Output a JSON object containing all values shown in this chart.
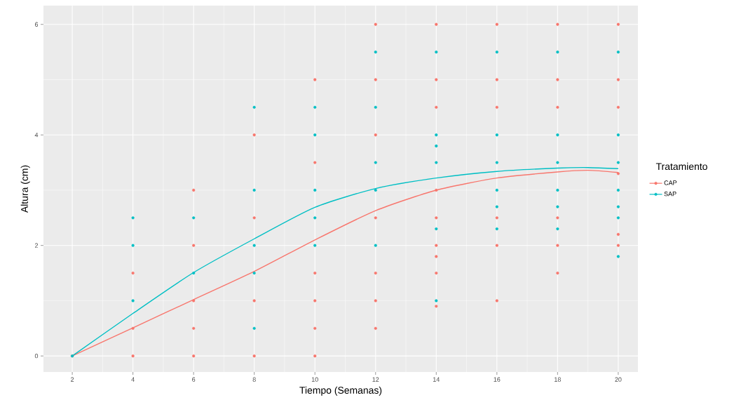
{
  "chart_data": {
    "type": "scatter",
    "xlabel": "Tiempo (Semanas)",
    "ylabel": "Altura (cm)",
    "legend_title": "Tratamiento",
    "legend": "right",
    "grid": true,
    "xlim": [
      1.05,
      20.65
    ],
    "ylim": [
      -0.29,
      6.34
    ],
    "xticks": [
      2,
      4,
      6,
      8,
      10,
      12,
      14,
      16,
      18,
      20
    ],
    "yticks": [
      0,
      2,
      4,
      6
    ],
    "series": [
      {
        "name": "CAP",
        "marker": "circle",
        "color": "#f8766d",
        "x": [
          2,
          4,
          4,
          4,
          6,
          6,
          6,
          6,
          6,
          8,
          8,
          8,
          8,
          10,
          10,
          10,
          10,
          10,
          10,
          12,
          12,
          12,
          12,
          12,
          12,
          12,
          14,
          14,
          14,
          14,
          14,
          14,
          14,
          14,
          14,
          16,
          16,
          16,
          16,
          16,
          16,
          18,
          18,
          18,
          18,
          18,
          18,
          20,
          20,
          20,
          20,
          20,
          20
        ],
        "values": [
          0,
          0,
          0.5,
          1.5,
          0,
          0.5,
          1,
          2,
          3,
          0,
          1,
          2.5,
          4,
          0,
          0.5,
          1,
          1.5,
          3.5,
          5,
          0.5,
          1,
          1.5,
          2.5,
          4,
          5,
          6,
          0.9,
          1.5,
          1.8,
          2,
          2.5,
          3,
          4.5,
          5,
          6,
          1,
          2,
          2.5,
          4.5,
          5,
          6,
          1.5,
          2,
          2.5,
          4.5,
          5,
          6,
          2,
          2.2,
          3.3,
          4.5,
          5,
          6
        ]
      },
      {
        "name": "SAP",
        "marker": "circle",
        "color": "#00bfc4",
        "x": [
          2,
          4,
          4,
          4,
          6,
          6,
          8,
          8,
          8,
          8,
          8,
          10,
          10,
          10,
          10,
          10,
          12,
          12,
          12,
          12,
          12,
          14,
          14,
          14,
          14,
          14,
          14,
          16,
          16,
          16,
          16,
          16,
          16,
          18,
          18,
          18,
          18,
          18,
          18,
          20,
          20,
          20,
          20,
          20,
          20,
          20
        ],
        "values": [
          0,
          1,
          2,
          2.5,
          1.5,
          2.5,
          0.5,
          1.5,
          2,
          3,
          4.5,
          2,
          2.5,
          3,
          4,
          4.5,
          2,
          3,
          3.5,
          4.5,
          5.5,
          1,
          2.3,
          3.5,
          3.8,
          4,
          5.5,
          2.3,
          2.7,
          3,
          3.5,
          4,
          5.5,
          2.3,
          2.7,
          3,
          3.5,
          4,
          5.5,
          1.8,
          2.5,
          2.7,
          3,
          3.5,
          4,
          5.5
        ]
      },
      {
        "type": "line",
        "marker": "none",
        "color": "#f8766d",
        "x": [
          2,
          4,
          6,
          8,
          10,
          12,
          14,
          16,
          18,
          19,
          20
        ],
        "values": [
          0,
          0.51,
          1.02,
          1.53,
          2.1,
          2.63,
          3,
          3.22,
          3.33,
          3.36,
          3.32
        ]
      },
      {
        "type": "line",
        "marker": "none",
        "color": "#00bfc4",
        "x": [
          2,
          4,
          6,
          8,
          10,
          12,
          14,
          16,
          18,
          19,
          20
        ],
        "values": [
          0,
          0.77,
          1.51,
          2.12,
          2.69,
          3.03,
          3.22,
          3.34,
          3.4,
          3.41,
          3.39
        ]
      }
    ]
  }
}
